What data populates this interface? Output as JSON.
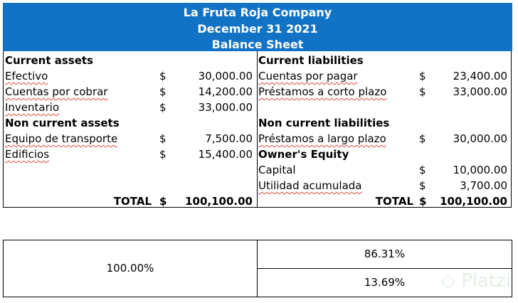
{
  "header": {
    "company": "La Fruta Roja Company",
    "date": "December 31 2021",
    "title": "Balance Sheet"
  },
  "assets": {
    "current_heading": "Current assets",
    "current": [
      {
        "label": "Efectivo",
        "currency": "$",
        "amount": "30,000.00"
      },
      {
        "label": "Cuentas por cobrar",
        "currency": "$",
        "amount": "14,200.00"
      },
      {
        "label": "Inventario",
        "currency": "$",
        "amount": "33,000.00"
      }
    ],
    "noncurrent_heading": "Non current assets",
    "noncurrent": [
      {
        "label": "Equipo de transporte",
        "currency": "$",
        "amount": "7,500.00"
      },
      {
        "label": "Edificios",
        "currency": "$",
        "amount": "15,400.00"
      }
    ],
    "total_label": "TOTAL",
    "total_currency": "$",
    "total_amount": "100,100.00"
  },
  "liabilities": {
    "current_heading": "Current liabilities",
    "current": [
      {
        "label": "Cuentas por pagar",
        "currency": "$",
        "amount": "23,400.00"
      },
      {
        "label": "Préstamos a corto plazo",
        "currency": "$",
        "amount": "33,000.00"
      }
    ],
    "noncurrent_heading": "Non current liabilities",
    "noncurrent": [
      {
        "label": "Préstamos a largo plazo",
        "currency": "$",
        "amount": "30,000.00"
      }
    ],
    "equity_heading": "Owner's Equity",
    "equity": [
      {
        "label": "Capital",
        "currency": "$",
        "amount": "10,000.00"
      },
      {
        "label": "Utilidad acumulada",
        "currency": "$",
        "amount": "3,700.00"
      }
    ],
    "total_label": "TOTAL",
    "total_currency": "$",
    "total_amount": "100,100.00"
  },
  "ratios": {
    "assets_pct": "100.00%",
    "liabilities_pct": "86.31%",
    "equity_pct": "13.69%"
  },
  "watermark": "Platzi"
}
